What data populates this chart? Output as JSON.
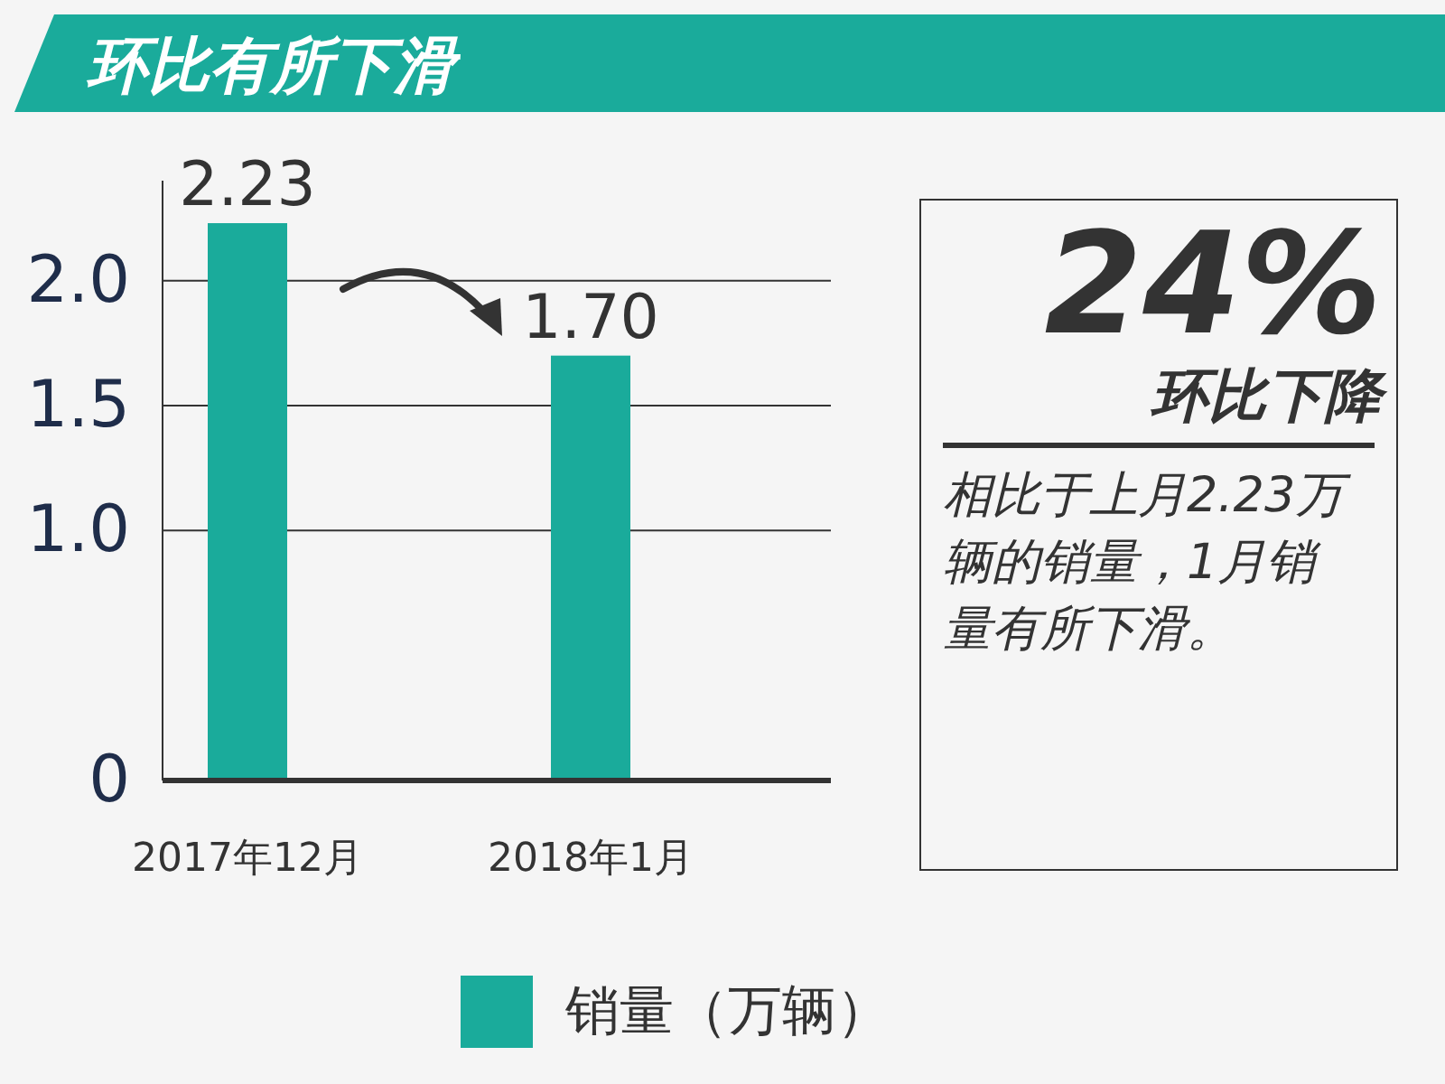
{
  "chart_data": [
    {
      "type": "bar",
      "title": "环比有所下滑",
      "categories": [
        "2017年12月",
        "2018年1月"
      ],
      "series": [
        {
          "name": "销量（万辆）",
          "color": "#1aab9b",
          "values": [
            2.23,
            1.7
          ],
          "value_labels": [
            "2.23",
            "1.70"
          ]
        }
      ],
      "ylim": [
        0,
        2.4
      ],
      "yticks": [
        0,
        {
          "value": 1.0,
          "label": "1.0"
        },
        1.5,
        {
          "value": 2.0,
          "label": "2.0"
        }
      ],
      "grid": "y",
      "legend": "bottom"
    },
    {
      "type": "other",
      "annotations": [
        "24%",
        "环比下降",
        "相比于上月2.23万辆的销量，1月销量有所下滑。"
      ]
    }
  ]
}
